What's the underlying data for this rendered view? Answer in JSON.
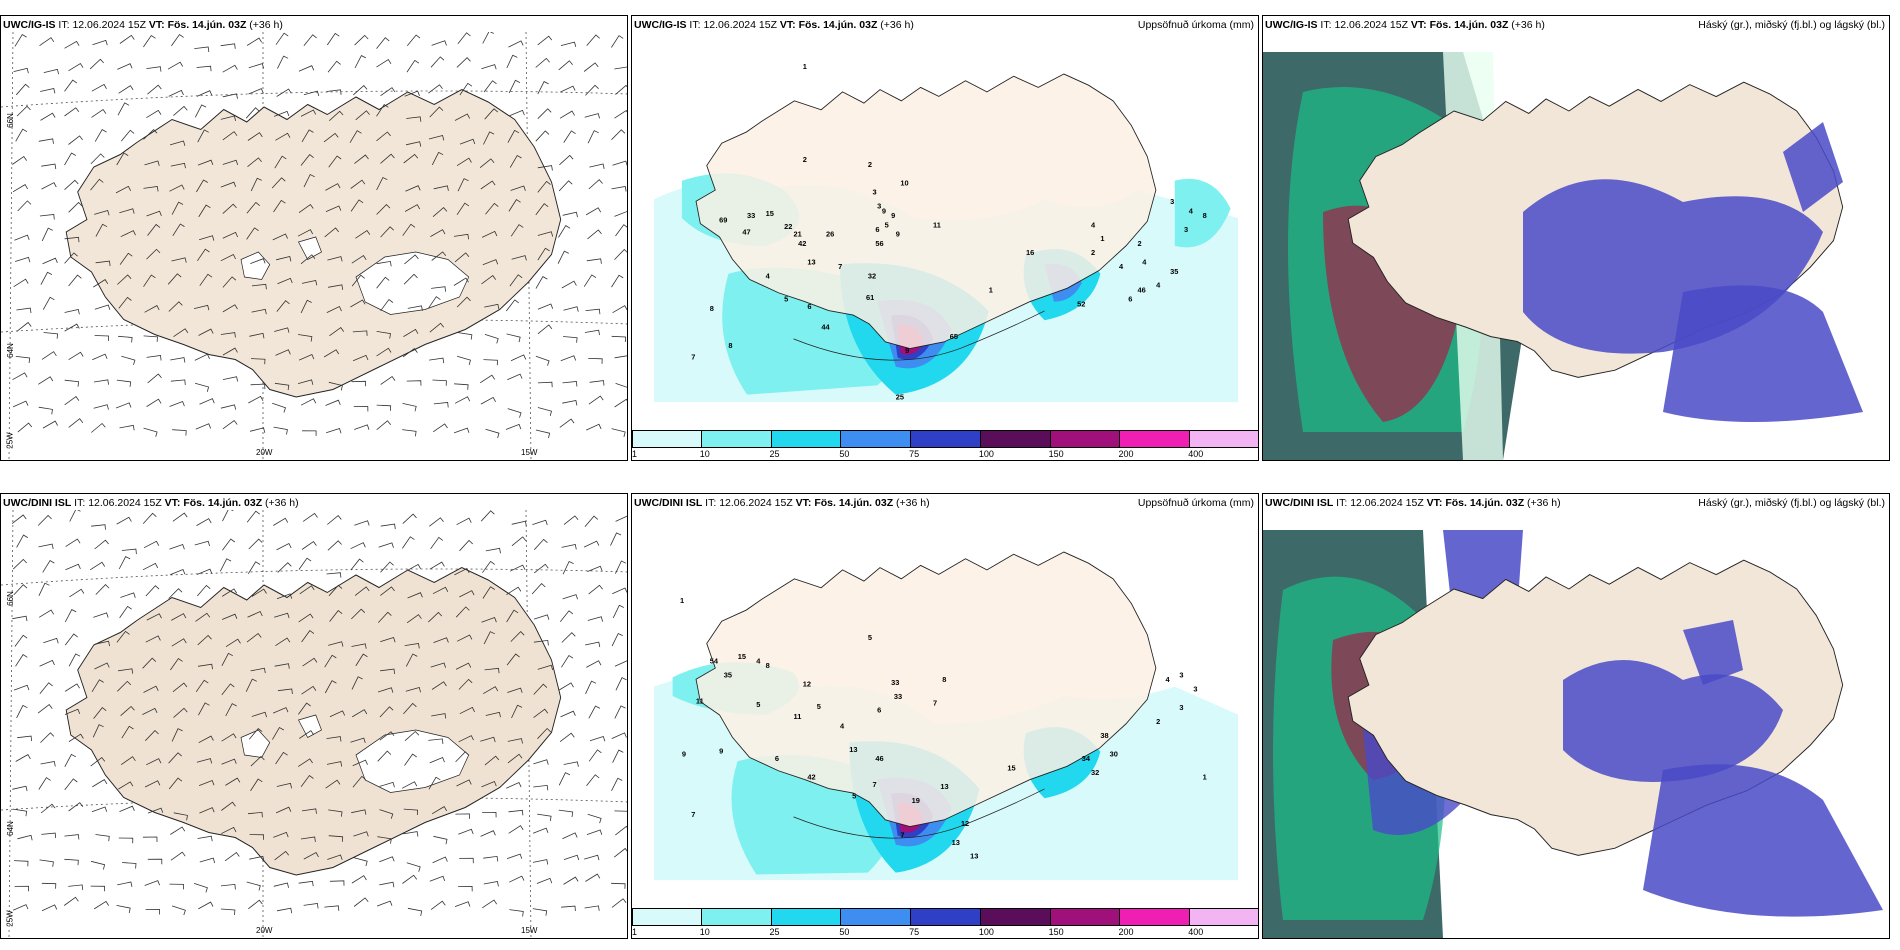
{
  "panels": [
    {
      "model": "UWC/IG-IS",
      "it_label": "IT:",
      "it_value": "12.06.2024 15Z",
      "vt_label": "VT:",
      "vt_value": "Fös. 14.jún. 03Z",
      "lead": "(+36 h)",
      "field": ""
    },
    {
      "model": "UWC/IG-IS",
      "it_label": "IT:",
      "it_value": "12.06.2024 15Z",
      "vt_label": "VT:",
      "vt_value": "Fös. 14.jún. 03Z",
      "lead": "(+36 h)",
      "field": "Uppsöfnuð úrkoma (mm)"
    },
    {
      "model": "UWC/IG-IS",
      "it_label": "IT:",
      "it_value": "12.06.2024 15Z",
      "vt_label": "VT:",
      "vt_value": "Fös. 14.jún. 03Z",
      "lead": "(+36 h)",
      "field": "Háský (gr.), miðský (fj.bl.) og lágský (bl.)"
    },
    {
      "model": "UWC/DINI ISL",
      "it_label": "IT:",
      "it_value": "12.06.2024 15Z",
      "vt_label": "VT:",
      "vt_value": "Fös. 14.jún. 03Z",
      "lead": "(+36 h)",
      "field": ""
    },
    {
      "model": "UWC/DINI ISL",
      "it_label": "IT:",
      "it_value": "12.06.2024 15Z",
      "vt_label": "VT:",
      "vt_value": "Fös. 14.jún. 03Z",
      "lead": "(+36 h)",
      "field": "Uppsöfnuð úrkoma (mm)"
    },
    {
      "model": "UWC/DINI ISL",
      "it_label": "IT:",
      "it_value": "12.06.2024 15Z",
      "vt_label": "VT:",
      "vt_value": "Fös. 14.jún. 03Z",
      "lead": "(+36 h)",
      "field": "Háský (gr.), miðský (fj.bl.) og lágský (bl.)"
    }
  ],
  "grid_labels": {
    "lat_upper": "66N",
    "lat_lower": "64N",
    "lon_left_edge": "25W",
    "lon_mid": "20W",
    "lon_right": "15W"
  },
  "colorbar": {
    "ticks": [
      "1",
      "10",
      "25",
      "50",
      "75",
      "100",
      "150",
      "200",
      "400"
    ],
    "colors": [
      "#d8fafa",
      "#7ff0f0",
      "#22d8ee",
      "#3d8ef0",
      "#2f3fc6",
      "#5a0e5a",
      "#a0107a",
      "#f01fb4",
      "#f3b4f3"
    ]
  },
  "precip_labels_top": [
    "2",
    "1",
    "3",
    "3",
    "10",
    "9",
    "2",
    "9",
    "5",
    "6",
    "11",
    "69",
    "33",
    "15",
    "22",
    "47",
    "21",
    "26",
    "42",
    "13",
    "56",
    "9",
    "32",
    "4",
    "7",
    "61",
    "5",
    "6",
    "8",
    "44",
    "8",
    "7",
    "9",
    "65",
    "1",
    "16",
    "4",
    "2",
    "52",
    "1",
    "2",
    "4",
    "4",
    "4",
    "46",
    "6",
    "3",
    "4",
    "8",
    "3",
    "35",
    "25"
  ],
  "precip_labels_bottom": [
    "1",
    "54",
    "15",
    "4",
    "8",
    "35",
    "5",
    "12",
    "11",
    "5",
    "5",
    "11",
    "4",
    "33",
    "33",
    "6",
    "7",
    "8",
    "9",
    "9",
    "13",
    "46",
    "6",
    "42",
    "7",
    "5",
    "7",
    "19",
    "13",
    "12",
    "7",
    "13",
    "13",
    "15",
    "2",
    "4",
    "3",
    "3",
    "3",
    "38",
    "34",
    "32",
    "30",
    "1"
  ],
  "colors": {
    "land": "#f2e6d8",
    "land_dini": "#efe2d2",
    "sea_light": "#d8fafa",
    "cyan": "#7ff0f0",
    "cloud_high": "#1bbf88",
    "cloud_mid": "#9b2a4c",
    "cloud_low": "#4a4ac8"
  }
}
